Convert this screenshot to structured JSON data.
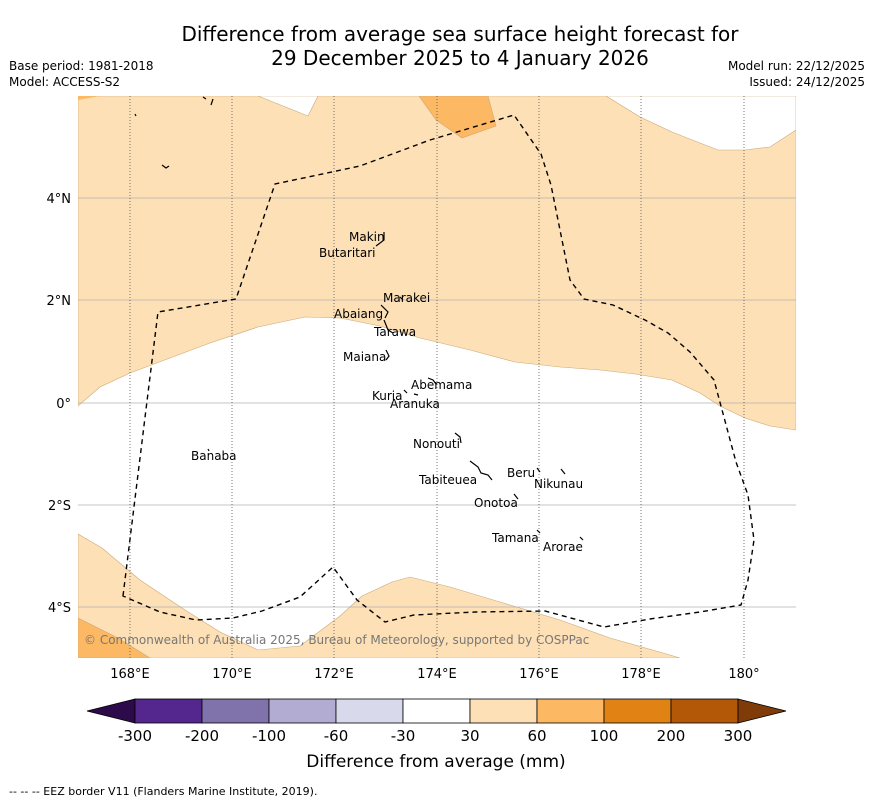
{
  "header": {
    "title_line1": "Difference from average sea surface height forecast for",
    "title_line2": "29 December 2025 to 4 January 2026",
    "base_period": "Base period: 1981-2018",
    "model": "Model: ACCESS-S2",
    "model_run": "Model run: 22/12/2025",
    "issued": "Issued: 24/12/2025"
  },
  "map": {
    "copyright": "© Commonwealth of Australia 2025, Bureau of Meteorology, supported by COSPPac",
    "lon_labels": [
      "168°E",
      "170°E",
      "172°E",
      "174°E",
      "176°E",
      "178°E",
      "180°"
    ],
    "lat_labels": [
      "4°N",
      "2°N",
      "0°",
      "2°S",
      "4°S"
    ],
    "places": [
      {
        "name": "Makin"
      },
      {
        "name": "Butaritari"
      },
      {
        "name": "Marakei"
      },
      {
        "name": "Abaiang"
      },
      {
        "name": "Tarawa"
      },
      {
        "name": "Maiana"
      },
      {
        "name": "Abemama"
      },
      {
        "name": "Kuria"
      },
      {
        "name": "Aranuka"
      },
      {
        "name": "Banaba"
      },
      {
        "name": "Nonouti"
      },
      {
        "name": "Beru"
      },
      {
        "name": "Nikunau"
      },
      {
        "name": "Tabiteuea"
      },
      {
        "name": "Onotoa"
      },
      {
        "name": "Tamana"
      },
      {
        "name": "Arorae"
      }
    ]
  },
  "colorbar": {
    "ticks": [
      "-300",
      "-200",
      "-100",
      "-60",
      "-30",
      "30",
      "60",
      "100",
      "200",
      "300"
    ],
    "colors": [
      "#2d0a4a",
      "#54278f",
      "#8073ac",
      "#b2abd2",
      "#d8daeb",
      "#ffffff",
      "#fee0b6",
      "#fdb863",
      "#e08214",
      "#b35806",
      "#7f3b08"
    ],
    "label": "Difference from average (mm)"
  },
  "footer": {
    "text": "--  --  -- EEZ border V11 (Flanders Marine Institute, 2019)."
  }
}
